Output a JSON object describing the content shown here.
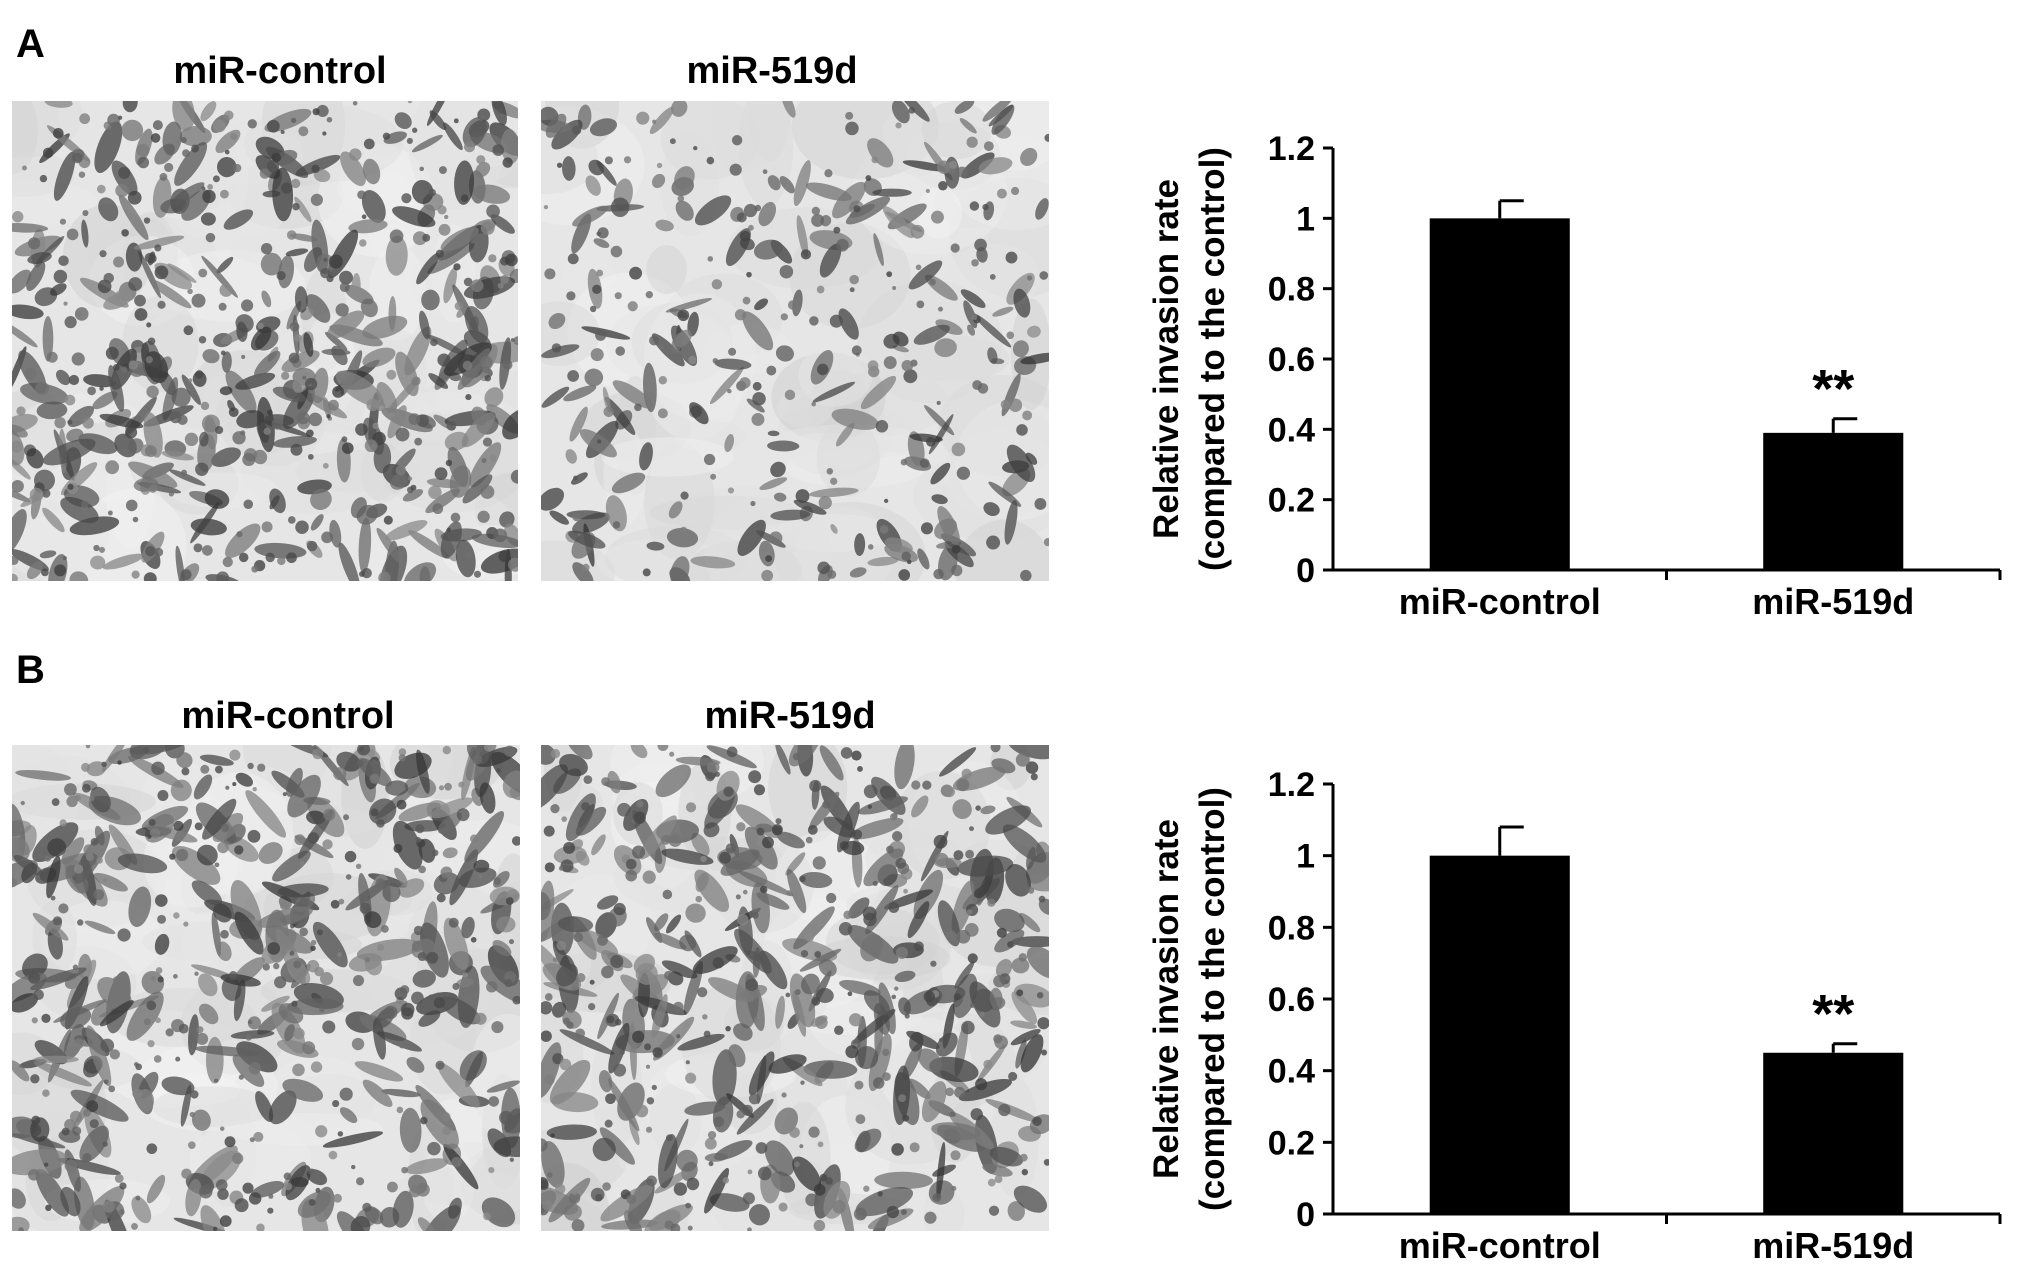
{
  "panels": [
    {
      "letter": "A",
      "image_titles": [
        "miR-control",
        "miR-519d"
      ],
      "chart_data": {
        "type": "bar",
        "categories": [
          "miR-control",
          "miR-519d"
        ],
        "values": [
          1.0,
          0.39
        ],
        "errors": [
          0.05,
          0.04
        ],
        "significance": [
          "",
          "**"
        ],
        "ylabel": [
          "Relative invasion rate",
          "(compared to the control)"
        ],
        "ylim": [
          0,
          1.2
        ],
        "yticks": [
          "0",
          "0.2",
          "0.4",
          "0.6",
          "0.8",
          "1",
          "1.2"
        ],
        "grid": false,
        "bar_color": "#000000"
      }
    },
    {
      "letter": "B",
      "image_titles": [
        "miR-control",
        "miR-519d"
      ],
      "chart_data": {
        "type": "bar",
        "categories": [
          "miR-control",
          "miR-519d"
        ],
        "values": [
          1.0,
          0.45
        ],
        "errors": [
          0.08,
          0.025
        ],
        "significance": [
          "",
          "**"
        ],
        "ylabel": [
          "Relative invasion rate",
          "(compared to the control)"
        ],
        "ylim": [
          0,
          1.2
        ],
        "yticks": [
          "0",
          "0.2",
          "0.4",
          "0.6",
          "0.8",
          "1",
          "1.2"
        ],
        "grid": false,
        "bar_color": "#000000"
      }
    }
  ]
}
